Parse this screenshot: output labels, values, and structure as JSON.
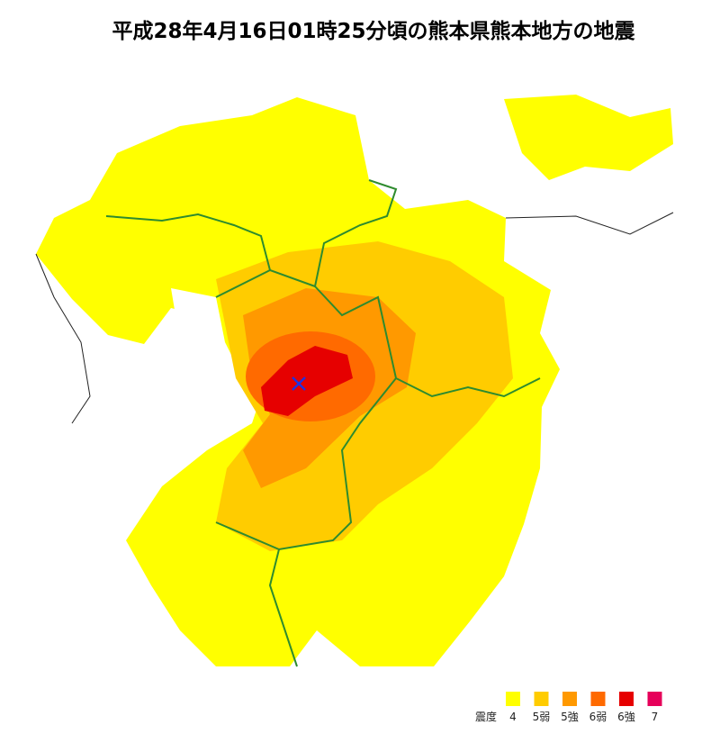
{
  "header": {
    "title": "平成28年4月16日01時25分頃の熊本県熊本地方の地震"
  },
  "legend": {
    "title": "震度",
    "items": [
      {
        "label": "4",
        "color": "#ffff00"
      },
      {
        "label": "5弱",
        "color": "#ffcc00"
      },
      {
        "label": "5強",
        "color": "#ff9900"
      },
      {
        "label": "6弱",
        "color": "#ff6a00"
      },
      {
        "label": "6強",
        "color": "#e60000"
      },
      {
        "label": "7",
        "color": "#e6005a"
      }
    ]
  }
}
